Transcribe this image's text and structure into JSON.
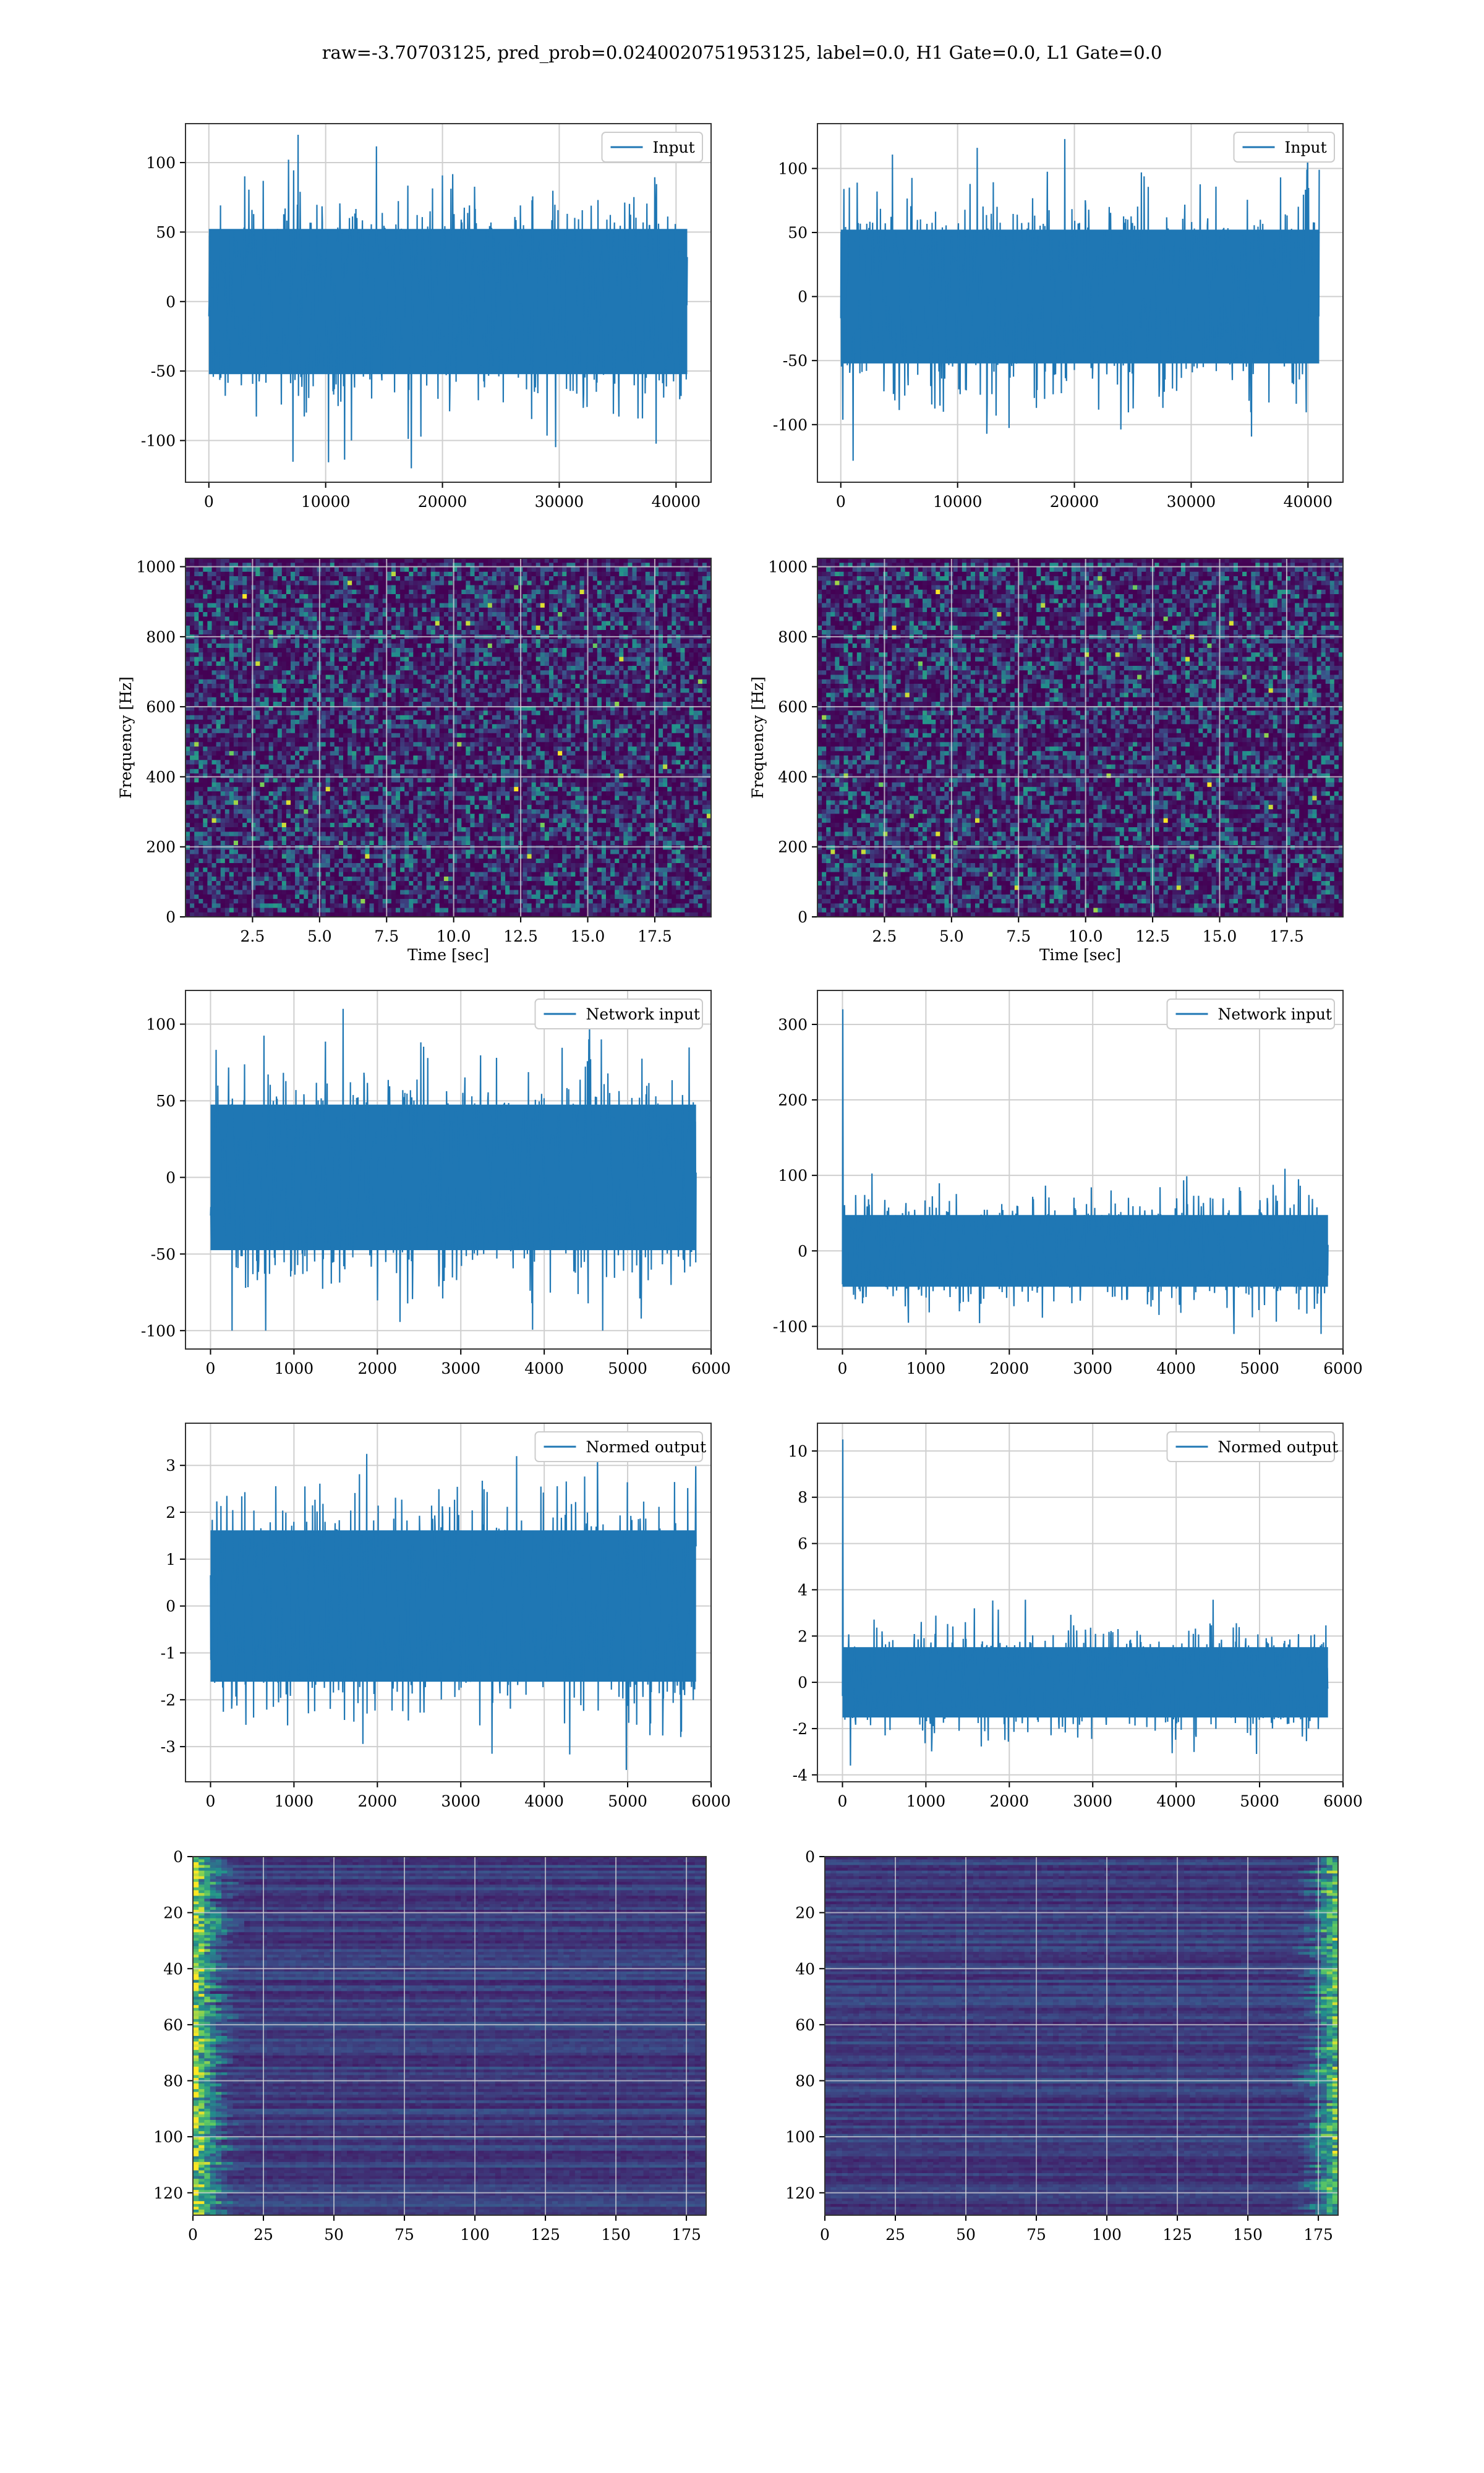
{
  "figure": {
    "suptitle": "raw=-3.70703125, pred_prob=0.0240020751953125, label=0.0, H1 Gate=0.0, L1 Gate=0.0"
  },
  "chart_data": [
    {
      "id": "p1",
      "type": "line",
      "title": "",
      "xlabel": "",
      "ylabel": "",
      "legend": "Input",
      "legend_position": "top-right",
      "grid": true,
      "xlim": [
        -2000,
        43000
      ],
      "ylim": [
        -130,
        128
      ],
      "xticks": [
        0,
        10000,
        20000,
        30000,
        40000
      ],
      "yticks": [
        -100,
        -50,
        0,
        50,
        100
      ],
      "series": [
        {
          "name": "Input",
          "color": "#1f77b4",
          "x_range": [
            0,
            40960
          ],
          "envelope": [
            -120,
            120
          ],
          "core_amplitude": 55
        }
      ]
    },
    {
      "id": "p2",
      "type": "line",
      "title": "",
      "xlabel": "",
      "ylabel": "",
      "legend": "Input",
      "legend_position": "top-right",
      "grid": true,
      "xlim": [
        -2000,
        43000
      ],
      "ylim": [
        -145,
        135
      ],
      "xticks": [
        0,
        10000,
        20000,
        30000,
        40000
      ],
      "yticks": [
        -100,
        -50,
        0,
        50,
        100
      ],
      "series": [
        {
          "name": "Input",
          "color": "#1f77b4",
          "x_range": [
            0,
            40960
          ],
          "envelope": [
            -130,
            123
          ],
          "core_amplitude": 55
        }
      ]
    },
    {
      "id": "p3",
      "type": "heatmap",
      "title": "",
      "xlabel": "Time [sec]",
      "ylabel": "Frequency [Hz]",
      "grid": true,
      "colormap": "viridis",
      "xlim": [
        0,
        19.6
      ],
      "ylim": [
        0,
        1024
      ],
      "xticks": [
        "2.5",
        "5.0",
        "7.5",
        "10.0",
        "12.5",
        "15.0",
        "17.5"
      ],
      "yticks": [
        0,
        200,
        400,
        600,
        800,
        1000
      ]
    },
    {
      "id": "p4",
      "type": "heatmap",
      "title": "",
      "xlabel": "Time [sec]",
      "ylabel": "Frequency [Hz]",
      "grid": true,
      "colormap": "viridis",
      "xlim": [
        0,
        19.6
      ],
      "ylim": [
        0,
        1024
      ],
      "xticks": [
        "2.5",
        "5.0",
        "7.5",
        "10.0",
        "12.5",
        "15.0",
        "17.5"
      ],
      "yticks": [
        0,
        200,
        400,
        600,
        800,
        1000
      ]
    },
    {
      "id": "p5",
      "type": "line",
      "title": "",
      "xlabel": "",
      "ylabel": "",
      "legend": "Network input",
      "legend_position": "top-right",
      "grid": true,
      "xlim": [
        -300,
        6000
      ],
      "ylim": [
        -112,
        122
      ],
      "xticks": [
        0,
        1000,
        2000,
        3000,
        4000,
        5000,
        6000
      ],
      "yticks": [
        -100,
        -50,
        0,
        50,
        100
      ],
      "series": [
        {
          "name": "Network input",
          "color": "#1f77b4",
          "x_range": [
            0,
            5820
          ],
          "envelope": [
            -100,
            110
          ],
          "core_amplitude": 50
        }
      ]
    },
    {
      "id": "p6",
      "type": "line",
      "title": "",
      "xlabel": "",
      "ylabel": "",
      "legend": "Network input",
      "legend_position": "top-right",
      "grid": true,
      "xlim": [
        -300,
        6000
      ],
      "ylim": [
        -130,
        345
      ],
      "xticks": [
        0,
        1000,
        2000,
        3000,
        4000,
        5000,
        6000
      ],
      "yticks": [
        -100,
        0,
        100,
        200,
        300
      ],
      "series": [
        {
          "name": "Network input",
          "color": "#1f77b4",
          "x_range": [
            0,
            5820
          ],
          "envelope": [
            -110,
            320
          ],
          "core_amplitude": 50,
          "initial_spike": 320
        }
      ]
    },
    {
      "id": "p7",
      "type": "line",
      "title": "",
      "xlabel": "",
      "ylabel": "",
      "legend": "Normed output",
      "legend_position": "top-right",
      "grid": true,
      "xlim": [
        -300,
        6000
      ],
      "ylim": [
        -3.75,
        3.9
      ],
      "xticks": [
        0,
        1000,
        2000,
        3000,
        4000,
        5000,
        6000
      ],
      "yticks": [
        -3,
        -2,
        -1,
        0,
        1,
        2,
        3
      ],
      "series": [
        {
          "name": "Normed output",
          "color": "#1f77b4",
          "x_range": [
            0,
            5820
          ],
          "envelope": [
            -3.5,
            3.6
          ],
          "core_amplitude": 1.7
        }
      ]
    },
    {
      "id": "p8",
      "type": "line",
      "title": "",
      "xlabel": "",
      "ylabel": "",
      "legend": "Normed output",
      "legend_position": "top-right",
      "grid": true,
      "xlim": [
        -300,
        6000
      ],
      "ylim": [
        -4.3,
        11.2
      ],
      "xticks": [
        0,
        1000,
        2000,
        3000,
        4000,
        5000,
        6000
      ],
      "yticks": [
        -4,
        -2,
        0,
        2,
        4,
        6,
        8,
        10
      ],
      "series": [
        {
          "name": "Normed output",
          "color": "#1f77b4",
          "x_range": [
            0,
            5820
          ],
          "envelope": [
            -3.6,
            10.5
          ],
          "core_amplitude": 1.6,
          "initial_spike": 10.5
        }
      ]
    },
    {
      "id": "p9",
      "type": "heatmap",
      "title": "",
      "xlabel": "",
      "ylabel": "",
      "grid": true,
      "colormap": "viridis",
      "hot_side": "left",
      "xlim": [
        0,
        182
      ],
      "ylim": [
        128,
        0
      ],
      "xticks": [
        0,
        25,
        50,
        75,
        100,
        125,
        150,
        175
      ],
      "yticks": [
        0,
        20,
        40,
        60,
        80,
        100,
        120
      ]
    },
    {
      "id": "p10",
      "type": "heatmap",
      "title": "",
      "xlabel": "",
      "ylabel": "",
      "grid": true,
      "colormap": "viridis",
      "hot_side": "right",
      "xlim": [
        0,
        182
      ],
      "ylim": [
        128,
        0
      ],
      "xticks": [
        0,
        25,
        50,
        75,
        100,
        125,
        150,
        175
      ],
      "yticks": [
        0,
        20,
        40,
        60,
        80,
        100,
        120
      ]
    }
  ]
}
